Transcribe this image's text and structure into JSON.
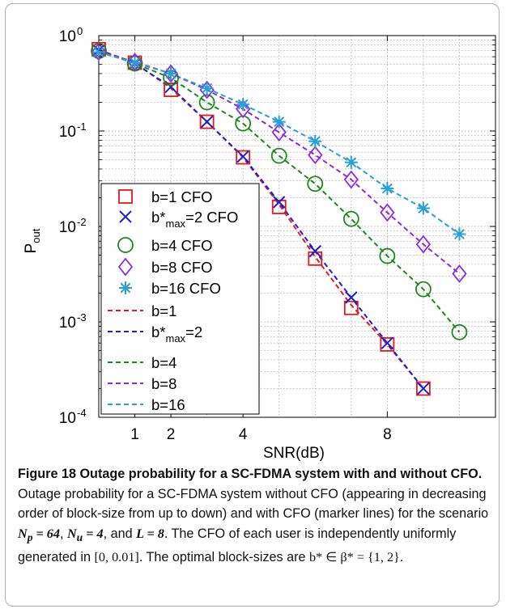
{
  "chart_data": {
    "type": "line",
    "xlabel": "SNR(dB)",
    "ylabel": "P",
    "ylabel_sub": "out",
    "x_ticks": [
      "1",
      "2",
      "4",
      "8"
    ],
    "y_ticks": [
      {
        "base": "10",
        "exp": "0"
      },
      {
        "base": "10",
        "exp": "-1"
      },
      {
        "base": "10",
        "exp": "-2"
      },
      {
        "base": "10",
        "exp": "-3"
      },
      {
        "base": "10",
        "exp": "-4"
      }
    ],
    "x_scale": "reciprocal",
    "xlim": [
      0,
      11
    ],
    "y_scale": "log",
    "ylim": [
      0.0001,
      1
    ],
    "grid": true,
    "legend_position": "left",
    "x": [
      0,
      1,
      2,
      3,
      4,
      5,
      6,
      7,
      8,
      9,
      10,
      11
    ],
    "series": [
      {
        "name": "b=1 CFO",
        "legend_sub": "",
        "legend_suffix": "",
        "marker": "square",
        "color": "#e31a1c",
        "values": [
          0.72,
          0.52,
          0.27,
          0.125,
          0.053,
          0.016,
          0.0046,
          0.0014,
          0.00058,
          0.0002,
          null,
          null
        ]
      },
      {
        "name": "b*",
        "legend_sub": "max",
        "legend_suffix": "=2 CFO",
        "marker": "x",
        "color": "#1f1fcf",
        "values": [
          0.7,
          0.51,
          0.29,
          0.125,
          0.054,
          0.018,
          0.0055,
          0.0018,
          0.0006,
          0.0002,
          null,
          null
        ]
      },
      {
        "name": "b=4 CFO",
        "legend_sub": "",
        "legend_suffix": "",
        "marker": "circle",
        "color": "#1b8a1b",
        "values": [
          0.69,
          0.51,
          0.36,
          0.2,
          0.12,
          0.055,
          0.028,
          0.012,
          0.0049,
          0.0022,
          0.00078,
          null
        ]
      },
      {
        "name": "b=8 CFO",
        "legend_sub": "",
        "legend_suffix": "",
        "marker": "diamond",
        "color": "#8a2be2",
        "values": [
          0.68,
          0.53,
          0.4,
          0.27,
          0.17,
          0.097,
          0.056,
          0.031,
          0.014,
          0.0065,
          0.0032,
          null
        ]
      },
      {
        "name": "b=16 CFO",
        "legend_sub": "",
        "legend_suffix": "",
        "marker": "asterisk",
        "color": "#2a9fd6",
        "values": [
          0.67,
          0.52,
          0.4,
          0.28,
          0.19,
          0.125,
          0.078,
          0.047,
          0.025,
          0.0155,
          0.0083,
          null
        ]
      },
      {
        "name": "b=1",
        "legend_sub": "",
        "legend_suffix": "",
        "marker": "dashed",
        "color": "#e31a1c",
        "values": [
          0.71,
          0.52,
          0.28,
          0.125,
          0.053,
          0.017,
          0.0048,
          0.0015,
          0.00058,
          0.0002,
          null,
          null
        ]
      },
      {
        "name": "b*",
        "legend_sub": "max",
        "legend_suffix": "=2",
        "marker": "dashed",
        "color": "#1f1fcf",
        "values": [
          0.7,
          0.51,
          0.29,
          0.125,
          0.054,
          0.018,
          0.0055,
          0.0018,
          0.0006,
          0.0002,
          null,
          null
        ]
      },
      {
        "name": "b=4",
        "legend_sub": "",
        "legend_suffix": "",
        "marker": "dashed",
        "color": "#1b8a1b",
        "values": [
          0.69,
          0.51,
          0.36,
          0.2,
          0.12,
          0.055,
          0.028,
          0.012,
          0.0049,
          0.0022,
          0.00078,
          null
        ]
      },
      {
        "name": "b=8",
        "legend_sub": "",
        "legend_suffix": "",
        "marker": "dashed",
        "color": "#8a2be2",
        "values": [
          0.68,
          0.53,
          0.4,
          0.27,
          0.17,
          0.097,
          0.056,
          0.031,
          0.014,
          0.0065,
          0.0032,
          null
        ]
      },
      {
        "name": "b=16",
        "legend_sub": "",
        "legend_suffix": "",
        "marker": "dashed",
        "color": "#2a9fd6",
        "values": [
          0.67,
          0.52,
          0.4,
          0.28,
          0.19,
          0.125,
          0.078,
          0.047,
          0.025,
          0.0155,
          0.0083,
          null
        ]
      }
    ]
  },
  "caption": {
    "title": "Figure 18 Outage probability for a SC-FDMA system with and without CFO.",
    "text_1": " Outage probability for a SC-FDMA system without CFO (appearing in decreasing order of block-size from up to down) and with CFO (marker lines) for the scenario ",
    "np_symbol": "N",
    "np_sub": "p",
    "np_value": " = 64",
    "text_2": ", ",
    "nu_symbol": "N",
    "nu_sub": "u",
    "nu_value": " = 4",
    "text_3": ", and ",
    "l_symbol": "L",
    "l_value": " = 8",
    "text_4": ". The CFO of each user is independently uniformly generated in ",
    "interval": "[0, 0.01]",
    "text_5": ". The optimal block-sizes are ",
    "bstar": "b* ∈ β* = {1, 2}",
    "text_6": "."
  }
}
